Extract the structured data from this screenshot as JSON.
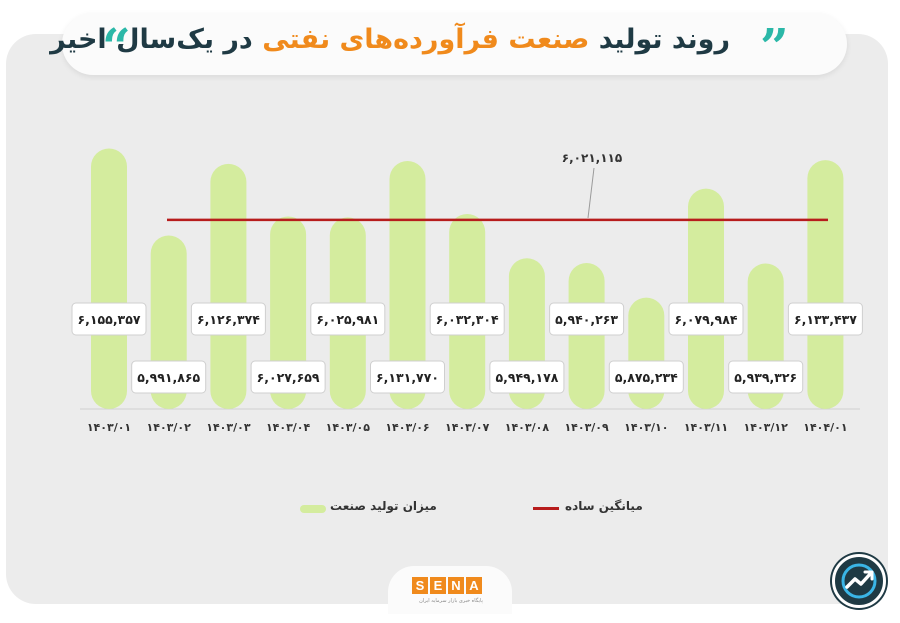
{
  "header": {
    "title_part1": "روند تولید ",
    "title_highlight": "صنعت فرآورده‌های نفتی",
    "title_part2": " در یک‌سال اخیر"
  },
  "colors": {
    "bar": "#d4ec9e",
    "average_line": "#b71c1c",
    "title_highlight": "#f08a1c",
    "title_text": "#1f3a44",
    "quote": "#2bb8a8",
    "brand": "#f08a1c"
  },
  "chart_data": {
    "type": "bar",
    "categories": [
      "۱۴۰۳/۰۱",
      "۱۴۰۳/۰۲",
      "۱۴۰۳/۰۳",
      "۱۴۰۳/۰۴",
      "۱۴۰۳/۰۵",
      "۱۴۰۳/۰۶",
      "۱۴۰۳/۰۷",
      "۱۴۰۳/۰۸",
      "۱۴۰۳/۰۹",
      "۱۴۰۳/۱۰",
      "۱۴۰۳/۱۱",
      "۱۴۰۳/۱۲",
      "۱۴۰۴/۰۱"
    ],
    "values": [
      6155357,
      5991865,
      6126374,
      6027659,
      6025981,
      6131770,
      6032304,
      5949178,
      5940263,
      5875234,
      6079984,
      5939326,
      6133437
    ],
    "value_labels": [
      "۶,۱۵۵,۳۵۷",
      "۵,۹۹۱,۸۶۵",
      "۶,۱۲۶,۳۷۴",
      "۶,۰۲۷,۶۵۹",
      "۶,۰۲۵,۹۸۱",
      "۶,۱۳۱,۷۷۰",
      "۶,۰۳۲,۳۰۴",
      "۵,۹۴۹,۱۷۸",
      "۵,۹۴۰,۲۶۳",
      "۵,۸۷۵,۲۳۴",
      "۶,۰۷۹,۹۸۴",
      "۵,۹۳۹,۳۲۶",
      "۶,۱۳۳,۴۳۷"
    ],
    "average": 6021115,
    "average_label": "۶,۰۲۱,۱۱۵",
    "legend": [
      "میزان تولید صنعت",
      "میانگین ساده"
    ],
    "legend_placement": "bottom",
    "grid": false
  },
  "branding": {
    "logo_letters": [
      "S",
      "E",
      "N",
      "A"
    ],
    "logo_subtitle": "پایگاه خبری بازار سرمایه ایران"
  }
}
